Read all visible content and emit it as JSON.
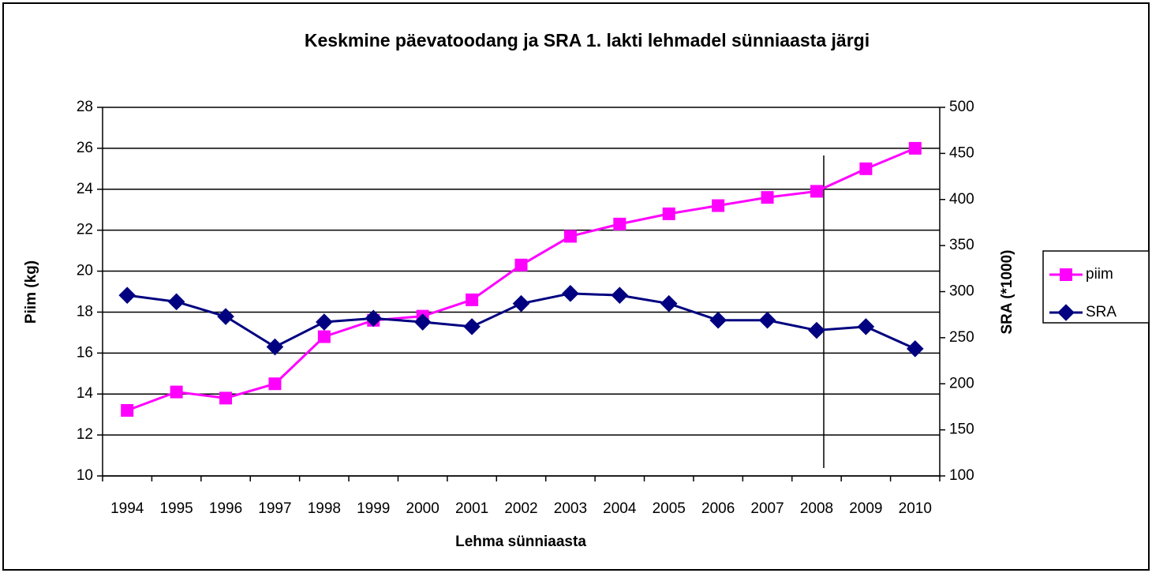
{
  "chart_data": {
    "type": "line",
    "title": "Keskmine päevatoodang ja SRA 1. lakti lehmadel sünniaasta järgi",
    "x_label": "Lehma sünniaasta",
    "y_label": "Piim (kg)",
    "y2_label": "SRA (*1000)",
    "categories": [
      "1994",
      "1995",
      "1996",
      "1997",
      "1998",
      "1999",
      "2000",
      "2001",
      "2002",
      "2003",
      "2004",
      "2005",
      "2006",
      "2007",
      "2008",
      "2009",
      "2010"
    ],
    "series": [
      {
        "name": "piim",
        "color": "#ff00ff",
        "marker": "square",
        "axis": "y",
        "values": [
          13.2,
          14.1,
          13.8,
          14.5,
          16.8,
          17.6,
          17.8,
          18.6,
          20.3,
          21.7,
          22.3,
          22.8,
          23.2,
          23.6,
          23.9,
          25.0,
          26.0
        ]
      },
      {
        "name": "SRA",
        "color": "#000080",
        "marker": "diamond",
        "axis": "y2",
        "values": [
          296,
          289,
          273,
          240,
          267,
          271,
          267,
          262,
          287,
          298,
          296,
          287,
          269,
          269,
          258,
          262,
          238
        ]
      }
    ],
    "ylim": [
      10,
      28
    ],
    "yticks": [
      10,
      12,
      14,
      16,
      18,
      20,
      22,
      24,
      26,
      28
    ],
    "y2lim": [
      100,
      500
    ],
    "y2ticks": [
      100,
      150,
      200,
      250,
      300,
      350,
      400,
      450,
      500
    ],
    "grid": true,
    "legend": "right"
  }
}
